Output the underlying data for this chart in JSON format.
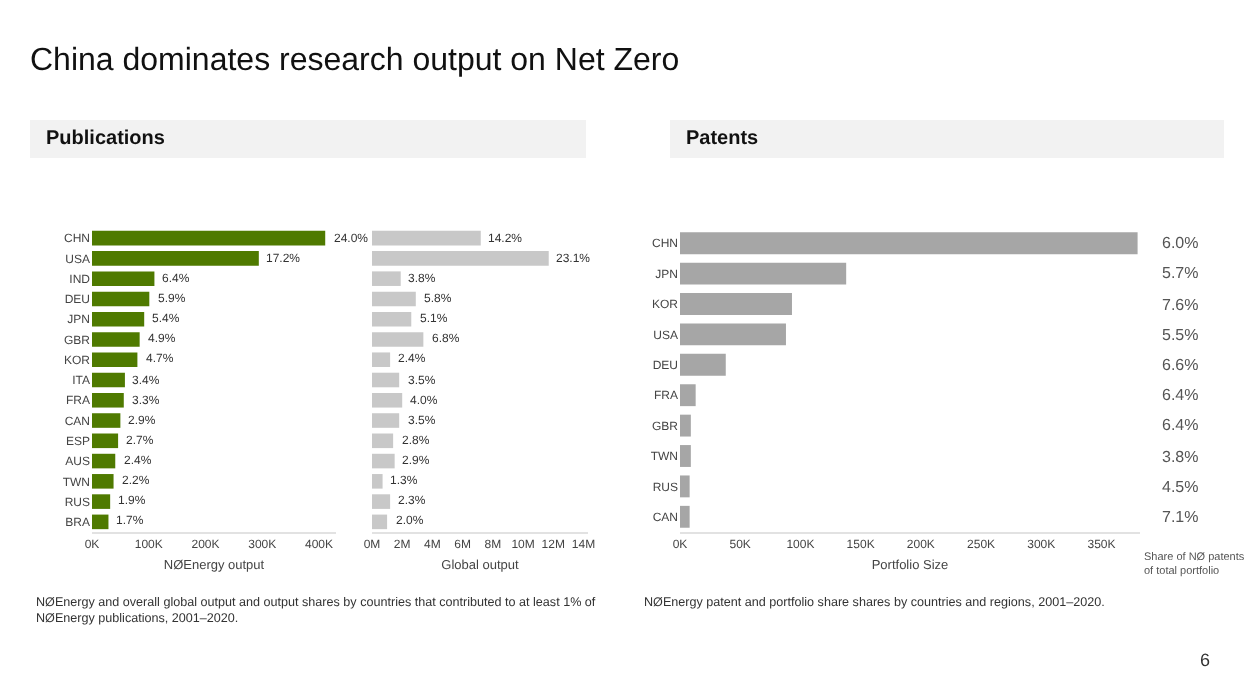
{
  "chart_data": [
    {
      "type": "bar",
      "title": "China dominates research output on Net Zero",
      "subtitle": "Publications",
      "orientation": "horizontal",
      "xlabel": "NØEnergy output",
      "categories": [
        "CHN",
        "USA",
        "IND",
        "DEU",
        "JPN",
        "GBR",
        "KOR",
        "ITA",
        "FRA",
        "CAN",
        "ESP",
        "AUS",
        "TWN",
        "RUS",
        "BRA"
      ],
      "values": [
        411000,
        294000,
        110000,
        101000,
        92000,
        84000,
        80000,
        58000,
        56000,
        50000,
        46000,
        41000,
        38000,
        32000,
        29000
      ],
      "color": "#4f7a00",
      "xlim": [
        0,
        430000
      ],
      "xticks": [
        {
          "value": 0,
          "label": "0K"
        },
        {
          "value": 100000,
          "label": "100K"
        },
        {
          "value": 200000,
          "label": "200K"
        },
        {
          "value": 300000,
          "label": "300K"
        },
        {
          "value": 400000,
          "label": "400K"
        }
      ],
      "annotations": [
        {
          "text": "24.0%",
          "x": 411000,
          "y": "CHN"
        },
        {
          "text": "17.2%",
          "x": 294000,
          "y": "USA"
        },
        {
          "text": "6.4%",
          "x": 110000,
          "y": "IND"
        },
        {
          "text": "5.9%",
          "x": 101000,
          "y": "DEU"
        },
        {
          "text": "5.4%",
          "x": 92000,
          "y": "JPN"
        },
        {
          "text": "4.9%",
          "x": 84000,
          "y": "GBR"
        },
        {
          "text": "4.7%",
          "x": 80000,
          "y": "KOR"
        },
        {
          "text": "3.4%",
          "x": 58000,
          "y": "ITA"
        },
        {
          "text": "3.3%",
          "x": 56000,
          "y": "FRA"
        },
        {
          "text": "2.9%",
          "x": 50000,
          "y": "CAN"
        },
        {
          "text": "2.7%",
          "x": 46000,
          "y": "ESP"
        },
        {
          "text": "2.4%",
          "x": 41000,
          "y": "AUS"
        },
        {
          "text": "2.2%",
          "x": 38000,
          "y": "TWN"
        },
        {
          "text": "1.9%",
          "x": 32000,
          "y": "RUS"
        },
        {
          "text": "1.7%",
          "x": 29000,
          "y": "BRA"
        },
        "NØEnergy and overall global output and output shares by countries that contributed to at least 1% of NØEnergy publications, 2001–2020."
      ]
    },
    {
      "type": "bar",
      "orientation": "horizontal",
      "xlabel": "Global output",
      "tick_labels": "x",
      "categories": [
        "CHN",
        "USA",
        "IND",
        "DEU",
        "JPN",
        "GBR",
        "KOR",
        "ITA",
        "FRA",
        "CAN",
        "ESP",
        "AUS",
        "TWN",
        "RUS",
        "BRA"
      ],
      "values": [
        7200000,
        11700000,
        1900000,
        2900000,
        2600000,
        3400000,
        1200000,
        1800000,
        2000000,
        1800000,
        1400000,
        1500000,
        700000,
        1200000,
        1000000
      ],
      "color": "#c8c8c8",
      "xlim": [
        0,
        14300000
      ],
      "xticks": [
        {
          "value": 0,
          "label": "0M"
        },
        {
          "value": 2000000,
          "label": "2M"
        },
        {
          "value": 4000000,
          "label": "4M"
        },
        {
          "value": 6000000,
          "label": "6M"
        },
        {
          "value": 8000000,
          "label": "8M"
        },
        {
          "value": 10000000,
          "label": "10M"
        },
        {
          "value": 12000000,
          "label": "12M"
        },
        {
          "value": 14000000,
          "label": "14M"
        }
      ],
      "annotations": [
        {
          "text": "14.2%",
          "x": 7200000,
          "y": "CHN"
        },
        {
          "text": "23.1%",
          "x": 11700000,
          "y": "USA"
        },
        {
          "text": "3.8%",
          "x": 1900000,
          "y": "IND"
        },
        {
          "text": "5.8%",
          "x": 2900000,
          "y": "DEU"
        },
        {
          "text": "5.1%",
          "x": 2600000,
          "y": "JPN"
        },
        {
          "text": "6.8%",
          "x": 3400000,
          "y": "GBR"
        },
        {
          "text": "2.4%",
          "x": 1200000,
          "y": "KOR"
        },
        {
          "text": "3.5%",
          "x": 1800000,
          "y": "ITA"
        },
        {
          "text": "4.0%",
          "x": 2000000,
          "y": "FRA"
        },
        {
          "text": "3.5%",
          "x": 1800000,
          "y": "CAN"
        },
        {
          "text": "2.8%",
          "x": 1400000,
          "y": "ESP"
        },
        {
          "text": "2.9%",
          "x": 1500000,
          "y": "AUS"
        },
        {
          "text": "1.3%",
          "x": 700000,
          "y": "TWN"
        },
        {
          "text": "2.3%",
          "x": 1200000,
          "y": "RUS"
        },
        {
          "text": "2.0%",
          "x": 1000000,
          "y": "BRA"
        }
      ]
    },
    {
      "type": "bar",
      "subtitle": "Patents",
      "orientation": "horizontal",
      "xlabel": "Portfolio Size",
      "categories": [
        "CHN",
        "JPN",
        "KOR",
        "USA",
        "DEU",
        "FRA",
        "GBR",
        "TWN",
        "RUS",
        "CAN"
      ],
      "values": [
        380000,
        138000,
        93000,
        88000,
        38000,
        13000,
        9000,
        9000,
        8000,
        8000
      ],
      "color": "#a6a6a6",
      "xlim": [
        0,
        382000
      ],
      "xticks": [
        {
          "value": 0,
          "label": "0K"
        },
        {
          "value": 50000,
          "label": "50K"
        },
        {
          "value": 100000,
          "label": "100K"
        },
        {
          "value": 150000,
          "label": "150K"
        },
        {
          "value": 200000,
          "label": "200K"
        },
        {
          "value": 250000,
          "label": "250K"
        },
        {
          "value": 300000,
          "label": "300K"
        },
        {
          "value": 350000,
          "label": "350K"
        }
      ],
      "annotations": [
        "6.0%",
        "5.7%",
        "7.6%",
        "5.5%",
        "6.6%",
        "6.4%",
        "6.4%",
        "3.8%",
        "4.5%",
        "7.1%",
        "Share of NØ patents of total portfolio",
        "NØEnergy patent and portfolio share shares by countries and regions, 2001–2020.",
        "6"
      ]
    }
  ]
}
